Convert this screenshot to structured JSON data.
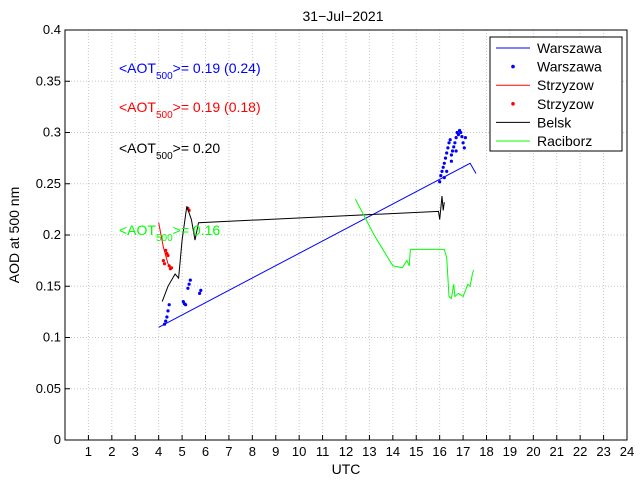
{
  "chart_data": {
    "type": "line",
    "title": "31−Jul−2021",
    "xlabel": "UTC",
    "ylabel": "AOD at 500 nm",
    "xlim": [
      0,
      24
    ],
    "ylim": [
      0,
      0.4
    ],
    "grid": true,
    "legend_position": "top-right",
    "x_ticks": [
      1,
      2,
      3,
      4,
      5,
      6,
      7,
      8,
      9,
      10,
      11,
      12,
      13,
      14,
      15,
      16,
      17,
      18,
      19,
      20,
      21,
      22,
      23,
      24
    ],
    "y_ticks": [
      0,
      0.05,
      0.1,
      0.15,
      0.2,
      0.25,
      0.3,
      0.35,
      0.4
    ],
    "y_tick_labels": [
      "0",
      "0.05",
      "0.1",
      "0.15",
      "0.2",
      "0.25",
      "0.3",
      "0.35",
      "0.4"
    ],
    "annotations": [
      {
        "prefix": "<AOT",
        "sub": "500",
        "suffix": ">= 0.19 (0.24)",
        "color": "#0000ff"
      },
      {
        "prefix": "<AOT",
        "sub": "500",
        "suffix": ">= 0.19 (0.18)",
        "color": "#ff0000"
      },
      {
        "prefix": "<AOT",
        "sub": "500",
        "suffix": ">= 0.20",
        "color": "#000000"
      },
      {
        "prefix": "<AOT",
        "sub": "500",
        "suffix": ">= 0.16",
        "color": "#00ff00"
      }
    ],
    "series": [
      {
        "name": "Warszawa",
        "style": "line",
        "color": "#0000ff",
        "points": [
          [
            4.0,
            0.11
          ],
          [
            17.3,
            0.27
          ],
          [
            17.55,
            0.26
          ]
        ]
      },
      {
        "name": "Warszawa",
        "style": "dots",
        "color": "#0000ff",
        "points": [
          [
            4.25,
            0.113
          ],
          [
            4.3,
            0.116
          ],
          [
            4.35,
            0.12
          ],
          [
            4.4,
            0.126
          ],
          [
            4.45,
            0.132
          ],
          [
            5.05,
            0.135
          ],
          [
            5.1,
            0.133
          ],
          [
            5.15,
            0.132
          ],
          [
            5.25,
            0.148
          ],
          [
            5.3,
            0.152
          ],
          [
            5.35,
            0.156
          ],
          [
            5.75,
            0.143
          ],
          [
            5.8,
            0.146
          ],
          [
            16.0,
            0.252
          ],
          [
            16.05,
            0.258
          ],
          [
            16.1,
            0.262
          ],
          [
            16.15,
            0.266
          ],
          [
            16.2,
            0.27
          ],
          [
            16.25,
            0.275
          ],
          [
            16.3,
            0.28
          ],
          [
            16.35,
            0.285
          ],
          [
            16.4,
            0.29
          ],
          [
            16.45,
            0.293
          ],
          [
            16.5,
            0.278
          ],
          [
            16.55,
            0.282
          ],
          [
            16.6,
            0.286
          ],
          [
            16.65,
            0.29
          ],
          [
            16.7,
            0.295
          ],
          [
            16.75,
            0.3
          ],
          [
            16.8,
            0.298
          ],
          [
            16.85,
            0.302
          ],
          [
            16.9,
            0.3
          ],
          [
            16.95,
            0.296
          ],
          [
            17.0,
            0.29
          ],
          [
            17.05,
            0.285
          ],
          [
            17.1,
            0.295
          ],
          [
            16.2,
            0.256
          ],
          [
            16.3,
            0.262
          ],
          [
            16.5,
            0.272
          ],
          [
            16.7,
            0.282
          ]
        ]
      },
      {
        "name": "Strzyzow",
        "style": "line",
        "color": "#ff0000",
        "points": [
          [
            4.0,
            0.212
          ],
          [
            4.1,
            0.2
          ],
          [
            4.2,
            0.188
          ],
          [
            4.3,
            0.18
          ],
          [
            4.4,
            0.172
          ],
          [
            4.5,
            0.168
          ]
        ]
      },
      {
        "name": "Strzyzow",
        "style": "dots",
        "color": "#ff0000",
        "points": [
          [
            4.2,
            0.175
          ],
          [
            4.25,
            0.172
          ],
          [
            4.3,
            0.185
          ],
          [
            4.35,
            0.182
          ],
          [
            4.4,
            0.18
          ],
          [
            4.45,
            0.17
          ],
          [
            4.5,
            0.167
          ],
          [
            4.55,
            0.168
          ],
          [
            5.25,
            0.226
          ],
          [
            5.3,
            0.224
          ]
        ]
      },
      {
        "name": "Belsk",
        "style": "line",
        "color": "#000000",
        "points": [
          [
            4.15,
            0.135
          ],
          [
            4.4,
            0.15
          ],
          [
            4.7,
            0.162
          ],
          [
            4.85,
            0.158
          ],
          [
            5.0,
            0.195
          ],
          [
            5.2,
            0.228
          ],
          [
            5.4,
            0.215
          ],
          [
            5.55,
            0.195
          ],
          [
            5.7,
            0.212
          ],
          [
            15.95,
            0.223
          ],
          [
            16.0,
            0.215
          ],
          [
            16.1,
            0.238
          ],
          [
            16.15,
            0.224
          ],
          [
            16.2,
            0.232
          ]
        ]
      },
      {
        "name": "Raciborz",
        "style": "line",
        "color": "#00ff00",
        "points": [
          [
            12.4,
            0.235
          ],
          [
            13.2,
            0.2
          ],
          [
            14.0,
            0.17
          ],
          [
            14.4,
            0.168
          ],
          [
            14.6,
            0.175
          ],
          [
            14.7,
            0.17
          ],
          [
            14.75,
            0.186
          ],
          [
            15.0,
            0.186
          ],
          [
            16.0,
            0.186
          ],
          [
            16.2,
            0.186
          ],
          [
            16.3,
            0.178
          ],
          [
            16.4,
            0.14
          ],
          [
            16.5,
            0.138
          ],
          [
            16.6,
            0.152
          ],
          [
            16.65,
            0.14
          ],
          [
            16.8,
            0.143
          ],
          [
            17.0,
            0.14
          ],
          [
            17.2,
            0.152
          ],
          [
            17.3,
            0.15
          ],
          [
            17.4,
            0.162
          ],
          [
            17.45,
            0.166
          ]
        ]
      }
    ]
  }
}
